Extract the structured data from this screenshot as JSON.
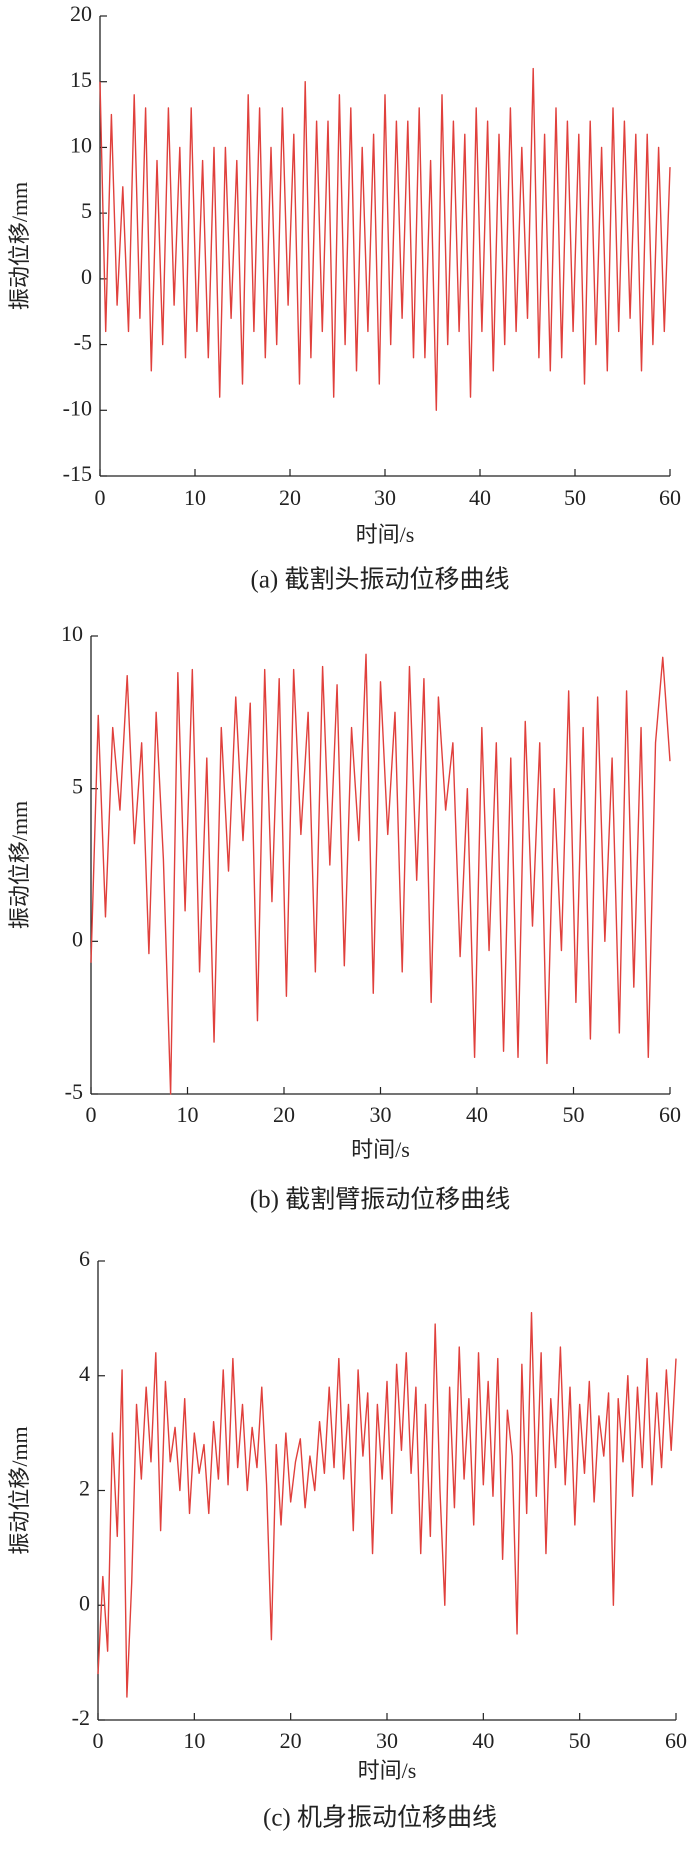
{
  "chart_data": [
    {
      "type": "line",
      "title": "(a)  截割头振动位移曲线",
      "xlabel": "时间/s",
      "ylabel": "振动位移/mm",
      "xlim": [
        0,
        60
      ],
      "xticks": [
        0,
        10,
        20,
        30,
        40,
        50,
        60
      ],
      "ylim": [
        -15,
        20
      ],
      "yticks": [
        -15,
        -10,
        -5,
        0,
        5,
        10,
        15,
        20
      ],
      "x": [
        0,
        0.6,
        1.2,
        1.8,
        2.4,
        3,
        3.6,
        4.2,
        4.8,
        5.4,
        6,
        6.6,
        7.2,
        7.8,
        8.4,
        9,
        9.6,
        10.2,
        10.8,
        11.4,
        12,
        12.6,
        13.2,
        13.8,
        14.4,
        15,
        15.6,
        16.2,
        16.8,
        17.4,
        18,
        18.6,
        19.2,
        19.8,
        20.4,
        21,
        21.6,
        22.2,
        22.8,
        23.4,
        24,
        24.6,
        25.2,
        25.8,
        26.4,
        27,
        27.6,
        28.2,
        28.8,
        29.4,
        30,
        30.6,
        31.2,
        31.8,
        32.4,
        33,
        33.6,
        34.2,
        34.8,
        35.4,
        36,
        36.6,
        37.2,
        37.8,
        38.4,
        39,
        39.6,
        40.2,
        40.8,
        41.4,
        42,
        42.6,
        43.2,
        43.8,
        44.4,
        45,
        45.6,
        46.2,
        46.8,
        47.4,
        48,
        48.6,
        49.2,
        49.8,
        50.4,
        51,
        51.6,
        52.2,
        52.8,
        53.4,
        54,
        54.6,
        55.2,
        55.8,
        56.4,
        57,
        57.6,
        58.2,
        58.8,
        59.4,
        60
      ],
      "series": [
        {
          "color": "#e0403c",
          "values": [
            15,
            -4,
            12.5,
            -2,
            7,
            -4,
            14,
            -3,
            13,
            -7,
            9,
            -5,
            13,
            -2,
            10,
            -6,
            13,
            -4,
            9,
            -6,
            10,
            -9,
            10,
            -3,
            9,
            -8,
            14,
            -4,
            13,
            -6,
            10,
            -5,
            13,
            -2,
            11,
            -8,
            15,
            -6,
            12,
            -4,
            12,
            -9,
            14,
            -5,
            13,
            -7,
            10,
            -4,
            11,
            -8,
            14,
            -5,
            12,
            -3,
            12,
            -6,
            13,
            -6,
            9,
            -10,
            14,
            -5,
            12,
            -4,
            11,
            -9,
            13,
            -4,
            12,
            -7,
            11,
            -5,
            13,
            -4,
            10,
            -3,
            16,
            -6,
            11,
            -7,
            13,
            -6,
            12,
            -4,
            11,
            -8,
            12,
            -5,
            10,
            -7,
            13,
            -4,
            12,
            -3,
            11,
            -7,
            11,
            -5,
            10,
            -4,
            8.5
          ]
        }
      ]
    },
    {
      "type": "line",
      "title": "(b)  截割臂振动位移曲线",
      "xlabel": "时间/s",
      "ylabel": "振动位移/mm",
      "xlim": [
        0,
        60
      ],
      "xticks": [
        0,
        10,
        20,
        30,
        40,
        50,
        60
      ],
      "ylim": [
        -5,
        10
      ],
      "yticks": [
        -5,
        0,
        5,
        10
      ],
      "x": [
        0,
        0.75,
        1.5,
        2.25,
        3,
        3.75,
        4.5,
        5.25,
        6,
        6.75,
        7.5,
        8.25,
        9,
        9.75,
        10.5,
        11.25,
        12,
        12.75,
        13.5,
        14.25,
        15,
        15.75,
        16.5,
        17.25,
        18,
        18.75,
        19.5,
        20.25,
        21,
        21.75,
        22.5,
        23.25,
        24,
        24.75,
        25.5,
        26.25,
        27,
        27.75,
        28.5,
        29.25,
        30,
        30.75,
        31.5,
        32.25,
        33,
        33.75,
        34.5,
        35.25,
        36,
        36.75,
        37.5,
        38.25,
        39,
        39.75,
        40.5,
        41.25,
        42,
        42.75,
        43.5,
        44.25,
        45,
        45.75,
        46.5,
        47.25,
        48,
        48.75,
        49.5,
        50.25,
        51,
        51.75,
        52.5,
        53.25,
        54,
        54.75,
        55.5,
        56.25,
        57,
        57.75,
        58.5,
        59.25,
        60
      ],
      "series": [
        {
          "color": "#e0403c",
          "values": [
            -0.7,
            7.4,
            0.8,
            7,
            4.3,
            8.7,
            3.2,
            6.5,
            -0.4,
            7.5,
            2.7,
            -5,
            8.8,
            1,
            8.9,
            -1,
            6,
            -3.3,
            7,
            2.3,
            8,
            3.3,
            7.8,
            -2.6,
            8.9,
            1.3,
            8.6,
            -1.8,
            8.9,
            3.5,
            7.5,
            -1,
            9,
            2.5,
            8.4,
            -0.8,
            7,
            3.3,
            9.4,
            -1.7,
            8.5,
            3.5,
            7.5,
            -1,
            9,
            2,
            8.6,
            -2,
            8,
            4.3,
            6.5,
            -0.5,
            5,
            -3.8,
            7,
            -0.3,
            6.5,
            -3.6,
            6,
            -3.8,
            7.2,
            0.5,
            6.5,
            -4,
            5,
            -0.3,
            8.2,
            -2,
            7,
            -3.2,
            8,
            0,
            6,
            -3,
            8.2,
            -1.5,
            7,
            -3.8,
            6.5,
            9.3,
            5.9
          ]
        }
      ]
    },
    {
      "type": "line",
      "title": "(c)  机身振动位移曲线",
      "xlabel": "时间/s",
      "ylabel": "振动位移/mm",
      "xlim": [
        0,
        60
      ],
      "xticks": [
        0,
        10,
        20,
        30,
        40,
        50,
        60
      ],
      "ylim": [
        -2,
        6
      ],
      "yticks": [
        -2,
        0,
        2,
        4,
        6
      ],
      "x": [
        0,
        0.5,
        1,
        1.5,
        2,
        2.5,
        3,
        3.5,
        4,
        4.5,
        5,
        5.5,
        6,
        6.5,
        7,
        7.5,
        8,
        8.5,
        9,
        9.5,
        10,
        10.5,
        11,
        11.5,
        12,
        12.5,
        13,
        13.5,
        14,
        14.5,
        15,
        15.5,
        16,
        16.5,
        17,
        17.5,
        18,
        18.5,
        19,
        19.5,
        20,
        20.5,
        21,
        21.5,
        22,
        22.5,
        23,
        23.5,
        24,
        24.5,
        25,
        25.5,
        26,
        26.5,
        27,
        27.5,
        28,
        28.5,
        29,
        29.5,
        30,
        30.5,
        31,
        31.5,
        32,
        32.5,
        33,
        33.5,
        34,
        34.5,
        35,
        35.5,
        36,
        36.5,
        37,
        37.5,
        38,
        38.5,
        39,
        39.5,
        40,
        40.5,
        41,
        41.5,
        42,
        42.5,
        43,
        43.5,
        44,
        44.5,
        45,
        45.5,
        46,
        46.5,
        47,
        47.5,
        48,
        48.5,
        49,
        49.5,
        50,
        50.5,
        51,
        51.5,
        52,
        52.5,
        53,
        53.5,
        54,
        54.5,
        55,
        55.5,
        56,
        56.5,
        57,
        57.5,
        58,
        58.5,
        59,
        59.5,
        60
      ],
      "series": [
        {
          "color": "#e0403c",
          "values": [
            -1.2,
            0.5,
            -0.8,
            3,
            1.2,
            4.1,
            -1.6,
            0.4,
            3.5,
            2.2,
            3.8,
            2.5,
            4.4,
            1.3,
            3.9,
            2.5,
            3.1,
            2,
            3.6,
            1.6,
            3,
            2.3,
            2.8,
            1.6,
            3.2,
            2.2,
            4.1,
            2.1,
            4.3,
            2.4,
            3.5,
            2,
            3.1,
            2.4,
            3.8,
            2.1,
            -0.6,
            2.8,
            1.4,
            3,
            1.8,
            2.5,
            2.9,
            1.7,
            2.6,
            2,
            3.2,
            2.3,
            3.8,
            2.4,
            4.3,
            2.2,
            3.5,
            1.3,
            4.1,
            2.6,
            3.7,
            0.9,
            3.5,
            2.2,
            3.9,
            1.6,
            4.2,
            2.7,
            4.4,
            2.3,
            3.8,
            0.9,
            3.5,
            1.2,
            4.9,
            2,
            0,
            3.8,
            1.7,
            4.5,
            2.2,
            3.6,
            1.4,
            4.4,
            2.1,
            3.9,
            1.9,
            4.3,
            0.8,
            3.4,
            2.6,
            -0.5,
            4.2,
            1.6,
            5.1,
            1.9,
            4.4,
            0.9,
            3.6,
            2.4,
            4.5,
            2.1,
            3.8,
            1.4,
            3.5,
            2.3,
            3.9,
            1.8,
            3.3,
            2.6,
            3.7,
            0,
            3.6,
            2.5,
            4,
            1.9,
            3.8,
            2.4,
            4.3,
            2.1,
            3.7,
            2.4,
            4.1,
            2.7,
            4.3
          ]
        }
      ]
    }
  ]
}
